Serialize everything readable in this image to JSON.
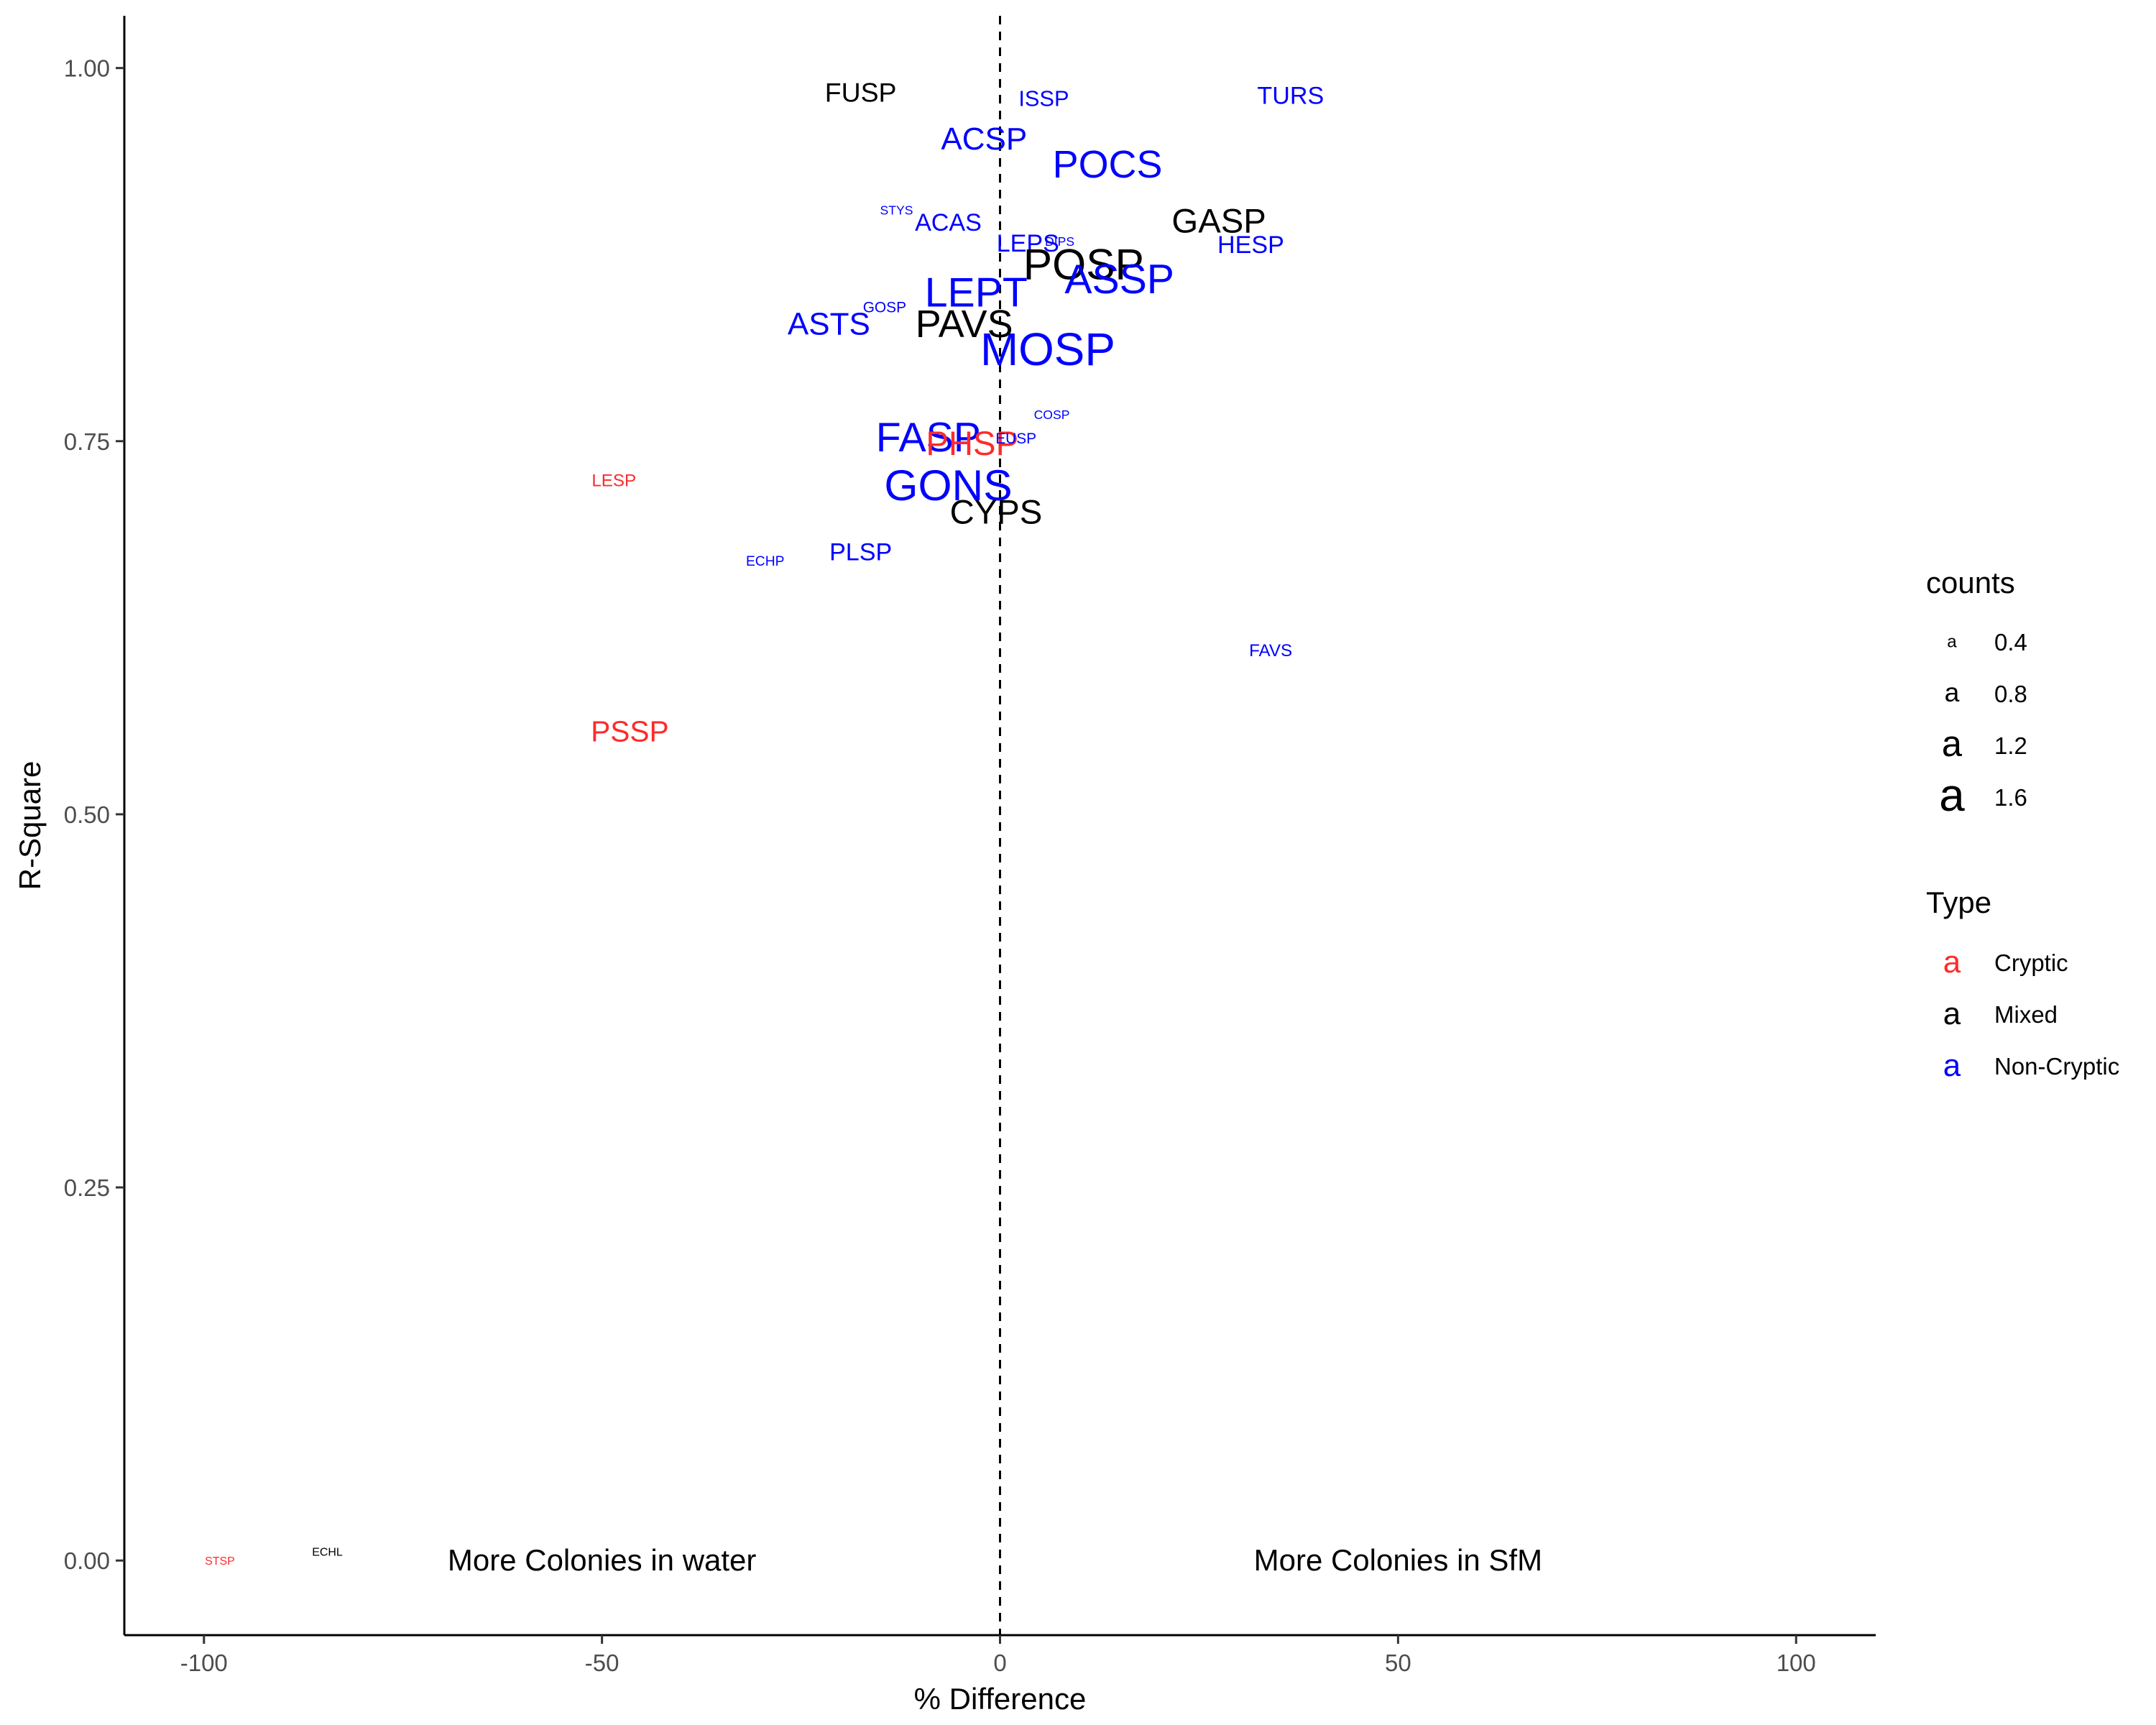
{
  "chart_data": {
    "type": "scatter",
    "xlabel": "% Difference",
    "ylabel": "R-Square",
    "xlim": [
      -110,
      110
    ],
    "ylim": [
      -0.05,
      1.035
    ],
    "x_ticks": [
      -100,
      -50,
      0,
      50,
      100
    ],
    "x_tick_labels": [
      "-100",
      "-50",
      "0",
      "50",
      "100"
    ],
    "y_ticks": [
      0,
      0.25,
      0.5,
      0.75,
      1.0
    ],
    "y_tick_labels": [
      "0.00",
      "0.25",
      "0.50",
      "0.75",
      "1.00"
    ],
    "grid": false,
    "reference_line": {
      "x": 0,
      "style": "dashed"
    },
    "annotations": [
      {
        "text": "More Colonies in water",
        "x": -50,
        "y": 0.0
      },
      {
        "text": "More Colonies in SfM",
        "x": 50,
        "y": 0.0
      }
    ],
    "colors": {
      "Cryptic": "#ff2a2a",
      "Mixed": "#000000",
      "Non-Cryptic": "#0000ff"
    },
    "points": [
      {
        "label": "FUSP",
        "x": -17.5,
        "y": 0.984,
        "type": "Mixed",
        "counts": 0.8
      },
      {
        "label": "ISSP",
        "x": 5.5,
        "y": 0.98,
        "type": "Non-Cryptic",
        "counts": 0.6
      },
      {
        "label": "TURS",
        "x": 36.5,
        "y": 0.982,
        "type": "Non-Cryptic",
        "counts": 0.7
      },
      {
        "label": "ACSP",
        "x": -2,
        "y": 0.953,
        "type": "Non-Cryptic",
        "counts": 1.0
      },
      {
        "label": "POCS",
        "x": 13.5,
        "y": 0.936,
        "type": "Non-Cryptic",
        "counts": 1.3
      },
      {
        "label": "STYS",
        "x": -13,
        "y": 0.905,
        "type": "Non-Cryptic",
        "counts": 0.2
      },
      {
        "label": "ACAS",
        "x": -6.5,
        "y": 0.897,
        "type": "Non-Cryptic",
        "counts": 0.7
      },
      {
        "label": "GASP",
        "x": 27.5,
        "y": 0.898,
        "type": "Mixed",
        "counts": 1.1
      },
      {
        "label": "LEPS",
        "x": 3.5,
        "y": 0.883,
        "type": "Non-Cryptic",
        "counts": 0.7
      },
      {
        "label": "DIPS",
        "x": 7.5,
        "y": 0.884,
        "type": "Non-Cryptic",
        "counts": 0.2
      },
      {
        "label": "HESP",
        "x": 31.5,
        "y": 0.882,
        "type": "Non-Cryptic",
        "counts": 0.7
      },
      {
        "label": "POSP",
        "x": 10.5,
        "y": 0.869,
        "type": "Mixed",
        "counts": 1.5
      },
      {
        "label": "ASSP",
        "x": 15,
        "y": 0.859,
        "type": "Non-Cryptic",
        "counts": 1.4
      },
      {
        "label": "LEPT",
        "x": -3,
        "y": 0.85,
        "type": "Non-Cryptic",
        "counts": 1.4
      },
      {
        "label": "GOSP",
        "x": -14.5,
        "y": 0.84,
        "type": "Non-Cryptic",
        "counts": 0.3
      },
      {
        "label": "ASTS",
        "x": -21.5,
        "y": 0.829,
        "type": "Non-Cryptic",
        "counts": 1.0
      },
      {
        "label": "PAVS",
        "x": -4.5,
        "y": 0.829,
        "type": "Mixed",
        "counts": 1.3
      },
      {
        "label": "MOSP",
        "x": 6,
        "y": 0.812,
        "type": "Non-Cryptic",
        "counts": 1.6
      },
      {
        "label": "COSP",
        "x": 6.5,
        "y": 0.768,
        "type": "Non-Cryptic",
        "counts": 0.2
      },
      {
        "label": "FASP",
        "x": -9,
        "y": 0.753,
        "type": "Non-Cryptic",
        "counts": 1.4
      },
      {
        "label": "PHSP",
        "x": -3.5,
        "y": 0.749,
        "type": "Cryptic",
        "counts": 1.1
      },
      {
        "label": "EUSP",
        "x": 2,
        "y": 0.752,
        "type": "Non-Cryptic",
        "counts": 0.3
      },
      {
        "label": "LESP",
        "x": -48.5,
        "y": 0.724,
        "type": "Cryptic",
        "counts": 0.4
      },
      {
        "label": "GONS",
        "x": -6.5,
        "y": 0.721,
        "type": "Non-Cryptic",
        "counts": 1.5
      },
      {
        "label": "CYPS",
        "x": -0.5,
        "y": 0.703,
        "type": "Mixed",
        "counts": 1.1
      },
      {
        "label": "ECHP",
        "x": -29.5,
        "y": 0.67,
        "type": "Non-Cryptic",
        "counts": 0.25
      },
      {
        "label": "PLSP",
        "x": -17.5,
        "y": 0.676,
        "type": "Non-Cryptic",
        "counts": 0.7
      },
      {
        "label": "FAVS",
        "x": 34,
        "y": 0.61,
        "type": "Non-Cryptic",
        "counts": 0.4
      },
      {
        "label": "PSSP",
        "x": -46.5,
        "y": 0.556,
        "type": "Cryptic",
        "counts": 0.9
      },
      {
        "label": "STSP",
        "x": -98,
        "y": 0.0,
        "type": "Cryptic",
        "counts": 0.15
      },
      {
        "label": "ECHL",
        "x": -84.5,
        "y": 0.006,
        "type": "Mixed",
        "counts": 0.15
      }
    ],
    "legend": {
      "placement": "right",
      "size_title": "counts",
      "size_entries": [
        {
          "label": "0.4",
          "value": 0.4
        },
        {
          "label": "0.8",
          "value": 0.8
        },
        {
          "label": "1.2",
          "value": 1.2
        },
        {
          "label": "1.6",
          "value": 1.6
        }
      ],
      "size_glyph": "a",
      "color_title": "Type",
      "color_entries": [
        {
          "label": "Cryptic",
          "color": "#ff2a2a"
        },
        {
          "label": "Mixed",
          "color": "#000000"
        },
        {
          "label": "Non-Cryptic",
          "color": "#0000ff"
        }
      ]
    }
  }
}
